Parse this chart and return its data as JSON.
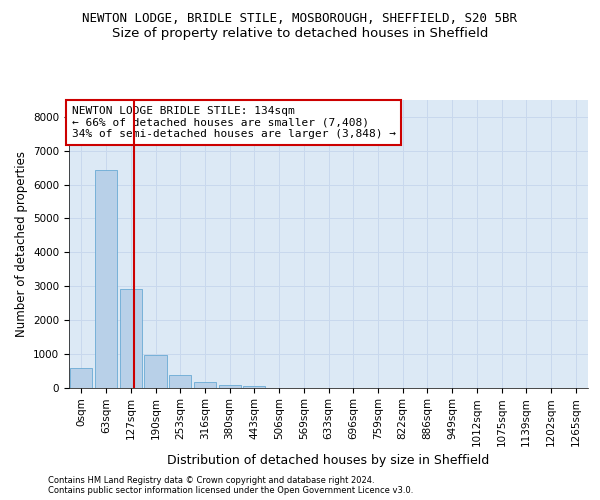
{
  "title1": "NEWTON LODGE, BRIDLE STILE, MOSBOROUGH, SHEFFIELD, S20 5BR",
  "title2": "Size of property relative to detached houses in Sheffield",
  "xlabel": "Distribution of detached houses by size in Sheffield",
  "ylabel": "Number of detached properties",
  "footnote1": "Contains HM Land Registry data © Crown copyright and database right 2024.",
  "footnote2": "Contains public sector information licensed under the Open Government Licence v3.0.",
  "annotation_line1": "NEWTON LODGE BRIDLE STILE: 134sqm",
  "annotation_line2": "← 66% of detached houses are smaller (7,408)",
  "annotation_line3": "34% of semi-detached houses are larger (3,848) →",
  "bar_values": [
    580,
    6420,
    2920,
    960,
    360,
    150,
    80,
    55,
    0,
    0,
    0,
    0,
    0,
    0,
    0,
    0,
    0,
    0,
    0,
    0,
    0
  ],
  "bar_labels": [
    "0sqm",
    "63sqm",
    "127sqm",
    "190sqm",
    "253sqm",
    "316sqm",
    "380sqm",
    "443sqm",
    "506sqm",
    "569sqm",
    "633sqm",
    "696sqm",
    "759sqm",
    "822sqm",
    "886sqm",
    "949sqm",
    "1012sqm",
    "1075sqm",
    "1139sqm",
    "1202sqm",
    "1265sqm"
  ],
  "bar_color": "#b8d0e8",
  "bar_edge_color": "#6aaad4",
  "ylim": [
    0,
    8500
  ],
  "yticks": [
    0,
    1000,
    2000,
    3000,
    4000,
    5000,
    6000,
    7000,
    8000
  ],
  "grid_color": "#c8d8ed",
  "bg_color": "#dce9f5",
  "vline_color": "#cc0000",
  "title1_fontsize": 9.0,
  "title2_fontsize": 9.5,
  "xlabel_fontsize": 9,
  "ylabel_fontsize": 8.5,
  "tick_fontsize": 7.5,
  "annotation_fontsize": 8.0
}
